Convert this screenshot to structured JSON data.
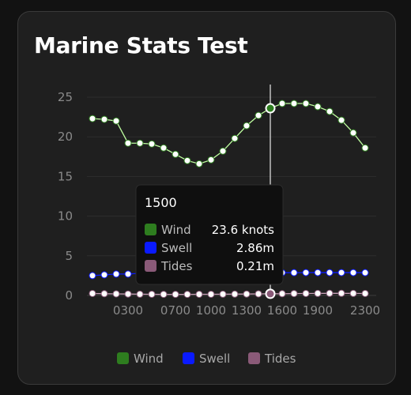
{
  "card": {
    "title": "Marine Stats Test"
  },
  "chart_data": {
    "type": "line",
    "x": [
      "0000",
      "0100",
      "0200",
      "0300",
      "0400",
      "0500",
      "0600",
      "0700",
      "0800",
      "0900",
      "1000",
      "1100",
      "1200",
      "1300",
      "1400",
      "1500",
      "1600",
      "1700",
      "1800",
      "1900",
      "2000",
      "2100",
      "2200",
      "2300"
    ],
    "xtick_labels": [
      "0300",
      "0700",
      "1000",
      "1300",
      "1600",
      "1900",
      "2300"
    ],
    "yticks": [
      0,
      5,
      10,
      15,
      20,
      25
    ],
    "ylim": [
      0,
      25
    ],
    "grid": true,
    "legend_position": "bottom",
    "series": [
      {
        "name": "Wind",
        "unit": "knots",
        "color": "#2e7d1f",
        "line_color": "#bfffa0",
        "values": [
          22.3,
          22.2,
          22.0,
          19.2,
          19.2,
          19.1,
          18.6,
          17.8,
          17.0,
          16.6,
          17.1,
          18.2,
          19.8,
          21.4,
          22.7,
          23.6,
          24.2,
          24.2,
          24.2,
          23.8,
          23.2,
          22.1,
          20.5,
          18.6
        ]
      },
      {
        "name": "Swell",
        "unit": "m",
        "color": "#0a1aff",
        "line_color": "#0a1aff",
        "values": [
          2.5,
          2.6,
          2.7,
          2.7,
          2.8,
          2.8,
          2.8,
          2.8,
          2.8,
          2.8,
          2.8,
          2.8,
          2.8,
          2.85,
          2.86,
          2.86,
          2.87,
          2.87,
          2.88,
          2.88,
          2.88,
          2.88,
          2.88,
          2.87
        ]
      },
      {
        "name": "Tides",
        "unit": "m",
        "color": "#8a5a78",
        "line_color": "#c9a0b8",
        "values": [
          0.25,
          0.22,
          0.2,
          0.18,
          0.16,
          0.15,
          0.14,
          0.14,
          0.14,
          0.15,
          0.15,
          0.16,
          0.17,
          0.18,
          0.2,
          0.21,
          0.22,
          0.24,
          0.25,
          0.26,
          0.27,
          0.27,
          0.26,
          0.25
        ]
      }
    ],
    "tooltip": {
      "x": "1500",
      "rows": [
        {
          "name": "Wind",
          "value": "23.6 knots"
        },
        {
          "name": "Swell",
          "value": "2.86m"
        },
        {
          "name": "Tides",
          "value": "0.21m"
        }
      ]
    }
  }
}
